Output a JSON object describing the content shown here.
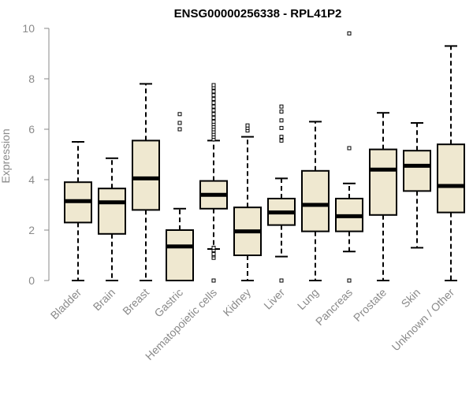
{
  "chart_data": {
    "type": "boxplot",
    "title": "ENSG00000256338 - RPL41P2",
    "xlabel": "",
    "ylabel": "Expression",
    "ylim": [
      0,
      10
    ],
    "yticks": [
      0,
      2,
      4,
      6,
      8,
      10
    ],
    "grid": false,
    "box_fill": "#efe8d0",
    "categories": [
      "Bladder",
      "Brain",
      "Breast",
      "Gastric",
      "Hematopoietic cells",
      "Kidney",
      "Liver",
      "Lung",
      "Pancreas",
      "Prostate",
      "Skin",
      "Unknown / Other"
    ],
    "boxes": [
      {
        "whisker_low": 0.0,
        "q1": 2.3,
        "median": 3.15,
        "q3": 3.9,
        "whisker_high": 5.5,
        "outliers": []
      },
      {
        "whisker_low": 0.0,
        "q1": 1.85,
        "median": 3.1,
        "q3": 3.65,
        "whisker_high": 4.85,
        "outliers": []
      },
      {
        "whisker_low": 0.0,
        "q1": 2.8,
        "median": 4.05,
        "q3": 5.55,
        "whisker_high": 7.8,
        "outliers": []
      },
      {
        "whisker_low": 0.0,
        "q1": 0.0,
        "median": 1.35,
        "q3": 2.0,
        "whisker_high": 2.85,
        "outliers": [
          6.0,
          6.25,
          6.6
        ]
      },
      {
        "whisker_low": 1.25,
        "q1": 2.85,
        "median": 3.4,
        "q3": 3.95,
        "whisker_high": 5.55,
        "outliers": [
          0.0,
          0.9,
          1.0,
          1.05,
          1.2,
          1.3,
          5.6,
          5.7,
          5.8,
          5.9,
          6.0,
          6.1,
          6.2,
          6.3,
          6.45,
          6.6,
          6.75,
          6.9,
          7.05,
          7.2,
          7.35,
          7.5,
          7.65,
          7.75
        ]
      },
      {
        "whisker_low": 0.0,
        "q1": 1.0,
        "median": 1.95,
        "q3": 2.9,
        "whisker_high": 5.7,
        "outliers": [
          5.95,
          6.05,
          6.15
        ]
      },
      {
        "whisker_low": 0.95,
        "q1": 2.2,
        "median": 2.7,
        "q3": 3.25,
        "whisker_high": 4.05,
        "outliers": [
          0.0,
          5.55,
          5.7,
          6.05,
          6.35,
          6.7,
          6.9
        ]
      },
      {
        "whisker_low": 0.0,
        "q1": 1.95,
        "median": 3.0,
        "q3": 4.35,
        "whisker_high": 6.3,
        "outliers": []
      },
      {
        "whisker_low": 1.15,
        "q1": 1.95,
        "median": 2.55,
        "q3": 3.25,
        "whisker_high": 3.85,
        "outliers": [
          0.0,
          5.25,
          9.8
        ]
      },
      {
        "whisker_low": 0.0,
        "q1": 2.6,
        "median": 4.4,
        "q3": 5.2,
        "whisker_high": 6.65,
        "outliers": []
      },
      {
        "whisker_low": 1.3,
        "q1": 3.55,
        "median": 4.55,
        "q3": 5.15,
        "whisker_high": 6.25,
        "outliers": []
      },
      {
        "whisker_low": 0.0,
        "q1": 2.7,
        "median": 3.75,
        "q3": 5.4,
        "whisker_high": 9.3,
        "outliers": []
      }
    ]
  }
}
